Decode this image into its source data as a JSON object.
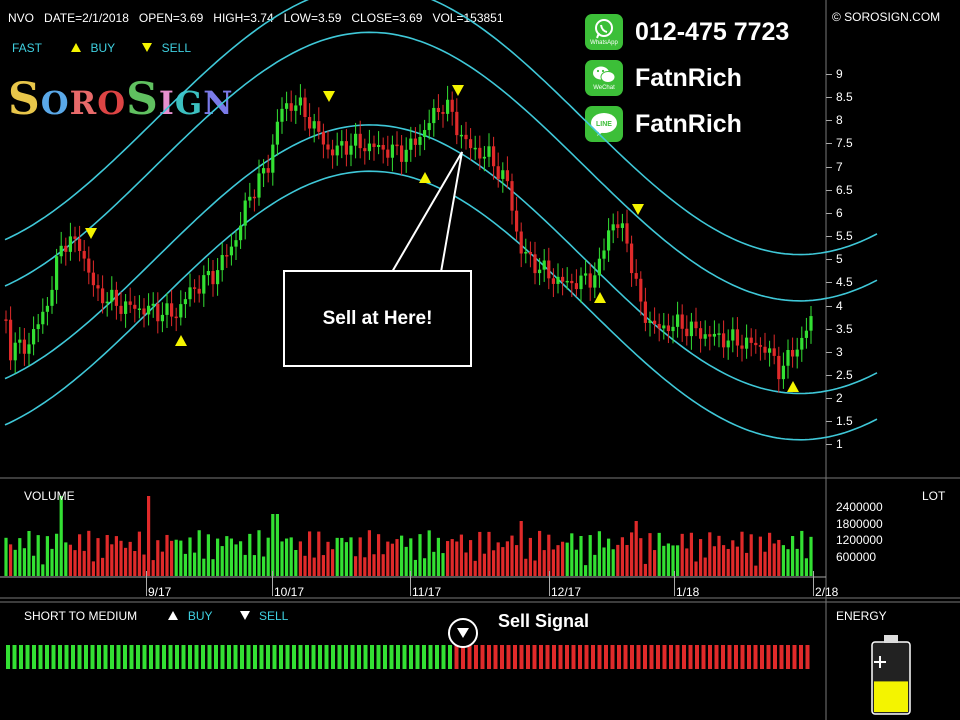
{
  "header": {
    "symbol": "NVO",
    "date": "DATE=2/1/2018",
    "open": "OPEN=3.69",
    "high": "HIGH=3.74",
    "low": "LOW=3.59",
    "close": "CLOSE=3.69",
    "vol": "VOL=153851"
  },
  "legend": {
    "fast": "FAST",
    "buy": "BUY",
    "sell": "SELL"
  },
  "copyright": "© SOROSIGN.COM",
  "logo": {
    "letters": [
      "S",
      "O",
      "R",
      "O",
      "S",
      "I",
      "G",
      "N"
    ],
    "colors": [
      "#e8c64a",
      "#5aa8e8",
      "#e86a6a",
      "#d44",
      "#60c060",
      "#e890d0",
      "#3cc0c0",
      "#7a7ae8"
    ]
  },
  "contacts": [
    {
      "icon": "whatsapp-icon",
      "caption": "WhatsApp",
      "text": "012-475 7723"
    },
    {
      "icon": "wechat-icon",
      "caption": "WeChat",
      "text": "FatnRich"
    },
    {
      "icon": "line-icon",
      "caption": "LINE",
      "text": "FatnRich"
    }
  ],
  "callout": "Sell at Here!",
  "price_axis": [
    "9",
    "8.5",
    "8",
    "7.5",
    "7",
    "6.5",
    "6",
    "5.5",
    "5",
    "4.5",
    "4",
    "3.5",
    "3",
    "2.5",
    "2",
    "1.5",
    "1"
  ],
  "volume": {
    "title": "VOLUME",
    "unit": "LOT",
    "ticks": [
      "2400000",
      "1800000",
      "1200000",
      "600000"
    ]
  },
  "date_axis": [
    "9/17",
    "10/17",
    "11/17",
    "12/17",
    "1/18",
    "2/18"
  ],
  "signal": {
    "title": "SHORT TO MEDIUM",
    "buy": "BUY",
    "sell": "SELL",
    "label": "Sell Signal",
    "green_bars": 69,
    "red_bars": 55
  },
  "energy": {
    "title": "ENERGY",
    "level": 0.45
  },
  "colors": {
    "up": "#33e033",
    "down": "#e02a2a",
    "channel": "#3fc8d8",
    "marker": "#f4f400",
    "panel_border": "#777777"
  }
}
